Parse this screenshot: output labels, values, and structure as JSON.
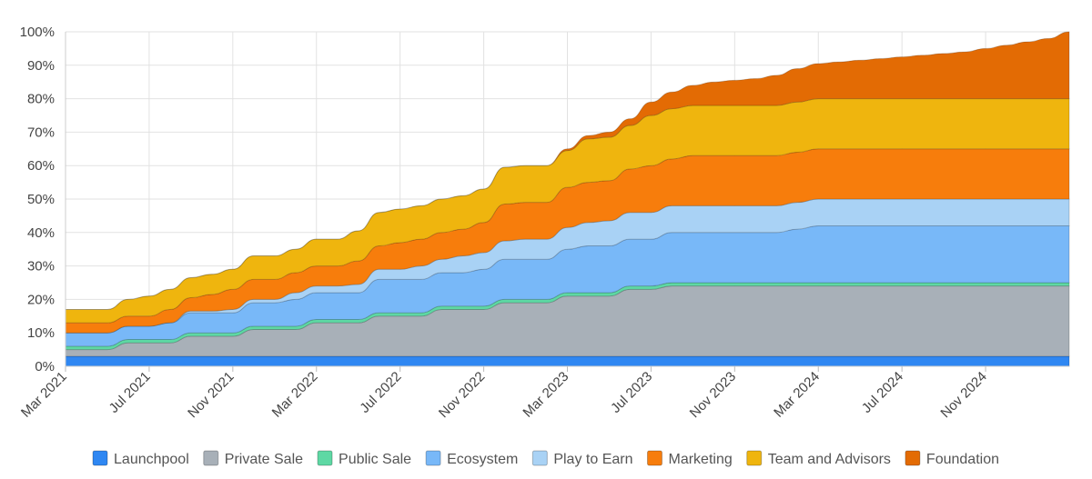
{
  "chart_data": {
    "type": "area",
    "stacked": true,
    "x": [
      "Mar 2021",
      "Apr 2021",
      "May 2021",
      "Jun 2021",
      "Jul 2021",
      "Aug 2021",
      "Sep 2021",
      "Oct 2021",
      "Nov 2021",
      "Dec 2021",
      "Jan 2022",
      "Feb 2022",
      "Mar 2022",
      "Apr 2022",
      "May 2022",
      "Jun 2022",
      "Jul 2022",
      "Aug 2022",
      "Sep 2022",
      "Oct 2022",
      "Nov 2022",
      "Dec 2022",
      "Jan 2023",
      "Feb 2023",
      "Mar 2023",
      "Apr 2023",
      "May 2023",
      "Jun 2023",
      "Jul 2023",
      "Aug 2023",
      "Sep 2023",
      "Oct 2023",
      "Nov 2023",
      "Dec 2023",
      "Jan 2024",
      "Feb 2024",
      "Mar 2024",
      "Apr 2024",
      "May 2024",
      "Jun 2024",
      "Jul 2024",
      "Aug 2024",
      "Sep 2024",
      "Oct 2024",
      "Nov 2024",
      "Dec 2024",
      "Jan 2025",
      "Feb 2025",
      "Mar 2025"
    ],
    "x_tick_labels": [
      "Mar 2021",
      "Jul 2021",
      "Nov 2021",
      "Mar 2022",
      "Jul 2022",
      "Nov 2022",
      "Mar 2023",
      "Jul 2023",
      "Nov 2023",
      "Mar 2024",
      "Jul 2024",
      "Nov 2024"
    ],
    "y_tick_labels": [
      "0%",
      "10%",
      "20%",
      "30%",
      "40%",
      "50%",
      "60%",
      "70%",
      "80%",
      "90%",
      "100%"
    ],
    "ylim": [
      0,
      100
    ],
    "grid": true,
    "legend_position": "bottom",
    "series": [
      {
        "name": "Launchpool",
        "color": "#2f87f2",
        "values": [
          3,
          3,
          3,
          3,
          3,
          3,
          3,
          3,
          3,
          3,
          3,
          3,
          3,
          3,
          3,
          3,
          3,
          3,
          3,
          3,
          3,
          3,
          3,
          3,
          3,
          3,
          3,
          3,
          3,
          3,
          3,
          3,
          3,
          3,
          3,
          3,
          3,
          3,
          3,
          3,
          3,
          3,
          3,
          3,
          3,
          3,
          3,
          3,
          3
        ]
      },
      {
        "name": "Private Sale",
        "color": "#a8b0b8",
        "values": [
          2,
          2,
          2,
          4,
          4,
          4,
          6,
          6,
          6,
          8,
          8,
          8,
          10,
          10,
          10,
          12,
          12,
          12,
          14,
          14,
          14,
          16,
          16,
          16,
          18,
          18,
          18,
          20,
          20,
          21,
          21,
          21,
          21,
          21,
          21,
          21,
          21,
          21,
          21,
          21,
          21,
          21,
          21,
          21,
          21,
          21,
          21,
          21,
          21
        ]
      },
      {
        "name": "Public Sale",
        "color": "#5ed8a4",
        "values": [
          1,
          1,
          1,
          1,
          1,
          1,
          1,
          1,
          1,
          1,
          1,
          1,
          1,
          1,
          1,
          1,
          1,
          1,
          1,
          1,
          1,
          1,
          1,
          1,
          1,
          1,
          1,
          1,
          1,
          1,
          1,
          1,
          1,
          1,
          1,
          1,
          1,
          1,
          1,
          1,
          1,
          1,
          1,
          1,
          1,
          1,
          1,
          1,
          1
        ]
      },
      {
        "name": "Ecosystem",
        "color": "#78b8f8",
        "values": [
          4,
          4,
          4,
          4,
          4,
          5,
          6,
          6,
          6,
          7,
          7,
          8,
          8,
          8,
          8,
          10,
          10,
          10,
          10,
          10,
          11,
          12,
          12,
          12,
          13,
          14,
          14,
          14,
          14,
          15,
          15,
          15,
          15,
          15,
          15,
          16,
          17,
          17,
          17,
          17,
          17,
          17,
          17,
          17,
          17,
          17,
          17,
          17,
          17
        ]
      },
      {
        "name": "Play to Earn",
        "color": "#a9d2f5",
        "values": [
          0,
          0,
          0,
          0,
          0,
          0,
          0.5,
          0.5,
          1,
          1,
          1,
          2,
          2,
          2,
          2.5,
          3,
          3,
          4,
          4,
          5,
          5,
          5.5,
          6,
          6,
          6.5,
          7,
          7.5,
          8,
          8,
          8,
          8,
          8,
          8,
          8,
          8,
          8,
          8,
          8,
          8,
          8,
          8,
          8,
          8,
          8,
          8,
          8,
          8,
          8,
          8
        ]
      },
      {
        "name": "Marketing",
        "color": "#f77d0c",
        "values": [
          3,
          3,
          3,
          3,
          3,
          4,
          4,
          5,
          6,
          6,
          6,
          6,
          6,
          6,
          7,
          7,
          8,
          8,
          8,
          8,
          9,
          11,
          11,
          11,
          12,
          12,
          12,
          13,
          14,
          14,
          15,
          15,
          15,
          15,
          15,
          15,
          15,
          15,
          15,
          15,
          15,
          15,
          15,
          15,
          15,
          15,
          15,
          15,
          15
        ]
      },
      {
        "name": "Team and Advisors",
        "color": "#efb50e",
        "values": [
          4,
          4,
          4,
          5,
          6,
          6,
          6,
          6,
          6,
          7,
          7,
          7,
          8,
          8,
          9,
          10,
          10,
          10,
          10,
          10,
          10,
          11,
          11,
          11,
          11,
          13,
          13,
          13,
          15,
          15,
          15,
          15,
          15,
          15,
          15,
          15,
          15,
          15,
          15,
          15,
          15,
          15,
          15,
          15,
          15,
          15,
          15,
          15,
          15
        ]
      },
      {
        "name": "Foundation",
        "color": "#e36b04",
        "values": [
          0,
          0,
          0,
          0,
          0,
          0,
          0,
          0,
          0,
          0,
          0,
          0,
          0,
          0,
          0,
          0,
          0,
          0,
          0,
          0,
          0,
          0,
          0,
          0,
          0.5,
          1,
          1.5,
          2,
          4,
          5,
          6,
          7,
          7.5,
          8,
          9,
          10,
          10.5,
          11,
          11.5,
          12,
          12.5,
          13,
          13.5,
          14,
          15,
          16,
          17,
          18,
          20
        ]
      }
    ]
  }
}
